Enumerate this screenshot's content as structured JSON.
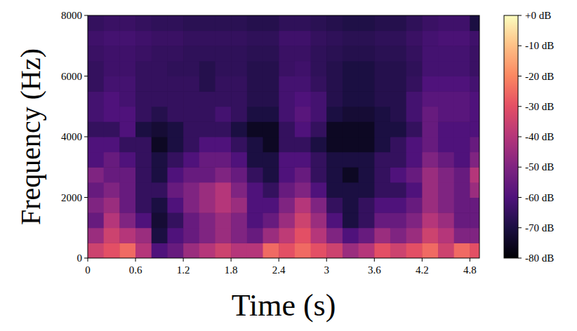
{
  "chart_data": {
    "type": "heatmap",
    "x_label": "Time (s)",
    "y_label": "Frequency (Hz)",
    "xlim": [
      0,
      4.92
    ],
    "ylim": [
      0,
      8000
    ],
    "xticks": [
      0,
      0.6,
      1.2,
      1.8,
      2.4,
      3,
      3.6,
      4.2,
      4.8
    ],
    "yticks": [
      0,
      2000,
      4000,
      6000,
      8000
    ],
    "x_bins": [
      0,
      0.2,
      0.4,
      0.6,
      0.8,
      1,
      1.2,
      1.4,
      1.6,
      1.8,
      2,
      2.2,
      2.4,
      2.6,
      2.8,
      3,
      3.2,
      3.4,
      3.6,
      3.8,
      4,
      4.2,
      4.4,
      4.6,
      4.8,
      4.92
    ],
    "y_bins": [
      0,
      500,
      1000,
      1500,
      2000,
      2500,
      3000,
      3500,
      4000,
      4500,
      5000,
      5500,
      6000,
      6500,
      7000,
      7500,
      8000
    ],
    "values": [
      [
        -35,
        -30,
        -25,
        -40,
        -60,
        -55,
        -45,
        -40,
        -35,
        -40,
        -40,
        -25,
        -30,
        -25,
        -30,
        -35,
        -45,
        -40,
        -30,
        -35,
        -30,
        -25,
        -35,
        -25,
        -30
      ],
      [
        -45,
        -35,
        -40,
        -45,
        -70,
        -60,
        -55,
        -50,
        -45,
        -50,
        -55,
        -45,
        -38,
        -30,
        -40,
        -50,
        -60,
        -55,
        -45,
        -50,
        -45,
        -35,
        -40,
        -50,
        -50
      ],
      [
        -55,
        -40,
        -50,
        -60,
        -72,
        -65,
        -55,
        -50,
        -45,
        -50,
        -60,
        -55,
        -45,
        -35,
        -45,
        -60,
        -70,
        -65,
        -55,
        -55,
        -50,
        -40,
        -45,
        -55,
        -55
      ],
      [
        -50,
        -45,
        -55,
        -65,
        -70,
        -60,
        -50,
        -45,
        -40,
        -45,
        -60,
        -60,
        -50,
        -40,
        -50,
        -65,
        -70,
        -65,
        -60,
        -60,
        -55,
        -45,
        -50,
        -55,
        -55
      ],
      [
        -55,
        -50,
        -55,
        -65,
        -65,
        -55,
        -50,
        -45,
        -40,
        -50,
        -60,
        -65,
        -55,
        -50,
        -60,
        -70,
        -70,
        -70,
        -65,
        -65,
        -60,
        -45,
        -50,
        -55,
        -45
      ],
      [
        -50,
        -55,
        -55,
        -65,
        -70,
        -60,
        -55,
        -55,
        -50,
        -55,
        -65,
        -70,
        -60,
        -55,
        -65,
        -70,
        -75,
        -70,
        -65,
        -60,
        -55,
        -45,
        -50,
        -55,
        -40
      ],
      [
        -60,
        -55,
        -60,
        -65,
        -70,
        -65,
        -60,
        -55,
        -55,
        -60,
        -70,
        -70,
        -60,
        -60,
        -65,
        -70,
        -70,
        -70,
        -65,
        -65,
        -60,
        -50,
        -55,
        -60,
        -50
      ],
      [
        -60,
        -60,
        -65,
        -65,
        -75,
        -70,
        -65,
        -60,
        -60,
        -65,
        -70,
        -75,
        -65,
        -65,
        -70,
        -75,
        -75,
        -75,
        -70,
        -65,
        -60,
        -55,
        -60,
        -60,
        -55
      ],
      [
        -65,
        -65,
        -60,
        -70,
        -72,
        -70,
        -65,
        -65,
        -65,
        -70,
        -75,
        -75,
        -65,
        -60,
        -65,
        -75,
        -75,
        -75,
        -70,
        -70,
        -65,
        -55,
        -60,
        -60,
        -60
      ],
      [
        -62,
        -60,
        -60,
        -65,
        -68,
        -65,
        -65,
        -65,
        -62,
        -65,
        -70,
        -70,
        -62,
        -58,
        -62,
        -70,
        -72,
        -72,
        -70,
        -68,
        -62,
        -55,
        -58,
        -58,
        -60
      ],
      [
        -62,
        -60,
        -62,
        -65,
        -65,
        -65,
        -65,
        -65,
        -65,
        -65,
        -68,
        -68,
        -62,
        -60,
        -62,
        -68,
        -70,
        -70,
        -68,
        -68,
        -62,
        -58,
        -58,
        -58,
        -60
      ],
      [
        -65,
        -62,
        -62,
        -65,
        -65,
        -65,
        -65,
        -68,
        -65,
        -65,
        -68,
        -68,
        -62,
        -62,
        -65,
        -68,
        -70,
        -70,
        -68,
        -68,
        -65,
        -60,
        -60,
        -60,
        -62
      ],
      [
        -65,
        -63,
        -63,
        -65,
        -65,
        -66,
        -66,
        -68,
        -66,
        -66,
        -68,
        -68,
        -64,
        -63,
        -66,
        -68,
        -70,
        -70,
        -68,
        -68,
        -66,
        -62,
        -62,
        -62,
        -64
      ],
      [
        -64,
        -63,
        -63,
        -64,
        -65,
        -65,
        -66,
        -66,
        -66,
        -66,
        -67,
        -67,
        -64,
        -64,
        -66,
        -67,
        -68,
        -68,
        -67,
        -67,
        -65,
        -62,
        -62,
        -62,
        -64
      ],
      [
        -63,
        -62,
        -62,
        -63,
        -64,
        -64,
        -65,
        -65,
        -65,
        -65,
        -66,
        -66,
        -63,
        -63,
        -65,
        -66,
        -67,
        -67,
        -66,
        -66,
        -64,
        -62,
        -61,
        -61,
        -63
      ],
      [
        -65,
        -64,
        -64,
        -65,
        -66,
        -66,
        -67,
        -67,
        -67,
        -67,
        -68,
        -68,
        -66,
        -66,
        -67,
        -68,
        -69,
        -69,
        -68,
        -68,
        -66,
        -64,
        -63,
        -63,
        -70
      ]
    ],
    "zlim": [
      -80,
      0
    ],
    "zticks": [
      {
        "value": 0,
        "label": "+0 dB"
      },
      {
        "value": -10,
        "label": "-10 dB"
      },
      {
        "value": -20,
        "label": "-20 dB"
      },
      {
        "value": -30,
        "label": "-30 dB"
      },
      {
        "value": -40,
        "label": "-40 dB"
      },
      {
        "value": -50,
        "label": "-50 dB"
      },
      {
        "value": -60,
        "label": "-60 dB"
      },
      {
        "value": -70,
        "label": "-70 dB"
      },
      {
        "value": -80,
        "label": "-80 dB"
      }
    ]
  }
}
